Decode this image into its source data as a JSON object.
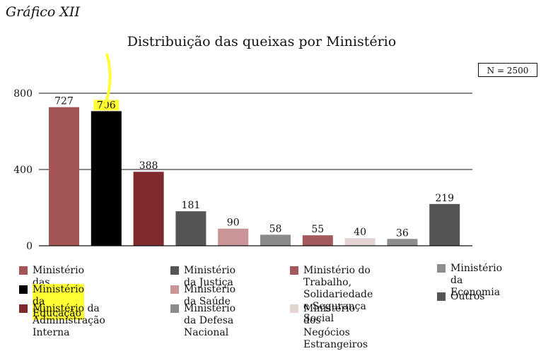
{
  "caption": "Gráfico XII",
  "n_label": "N = 2500",
  "colors": {
    "financas": "#a45555",
    "educacao": "#000000",
    "administracao": "#7e2a2e",
    "justica": "#555555",
    "saude": "#c99596",
    "defesa": "#8a8a8a",
    "trabalho": "#a45a5c",
    "negocios": "#e3d3d3",
    "economia": "#8d8d8d",
    "outros": "#555555",
    "highlight": "#ffff33"
  },
  "chart_data": {
    "type": "bar",
    "title": "Distribuição das queixas por Ministério",
    "ylim": [
      0,
      800
    ],
    "yticks": [
      "0",
      "400",
      "800"
    ],
    "grid": true,
    "legend_position": "bottom",
    "categories": [
      "Ministério das Finanças",
      "Ministério da Educação",
      "Ministério da Administração Interna",
      "Ministério da Justiça",
      "Ministério da Saúde",
      "Ministério da Defesa Nacional",
      "Ministério do Trabalho, Solidariedade e Segurança Social",
      "Ministério dos Negócios Estrangeiros",
      "Ministério da Economia",
      "Outros"
    ],
    "values": [
      727,
      706,
      388,
      181,
      90,
      58,
      55,
      40,
      36,
      219
    ],
    "value_labels": [
      "727",
      "706",
      "388",
      "181",
      "90",
      "58",
      "55",
      "40",
      "36",
      "219"
    ],
    "bar_colors": [
      "#a45555",
      "#000000",
      "#7e2a2e",
      "#555555",
      "#c99596",
      "#8a8a8a",
      "#a45a5c",
      "#e3d3d3",
      "#8d8d8d",
      "#555555"
    ],
    "highlighted": [
      "Ministério da Educação"
    ]
  },
  "legend": [
    {
      "label": "Ministério das Finanças",
      "color": "#a45555"
    },
    {
      "label": "Ministério da Educação",
      "color": "#000000"
    },
    {
      "label": "Ministério da Administração\nInterna",
      "color": "#7e2a2e"
    },
    {
      "label": "Ministério da Justiça",
      "color": "#555555"
    },
    {
      "label": "Ministério da Saúde",
      "color": "#c99596"
    },
    {
      "label": "Ministério da Defesa\nNacional",
      "color": "#8a8a8a"
    },
    {
      "label": "Ministério do  Trabalho,\nSolidariedade e Segurança\nSocial",
      "color": "#a45a5c"
    },
    {
      "label": "Ministério dos Negócios\nEstrangeiros",
      "color": "#e3d3d3"
    },
    {
      "label": "Ministério\nda Economia",
      "color": "#8d8d8d"
    },
    {
      "label": "Outros",
      "color": "#555555"
    }
  ]
}
